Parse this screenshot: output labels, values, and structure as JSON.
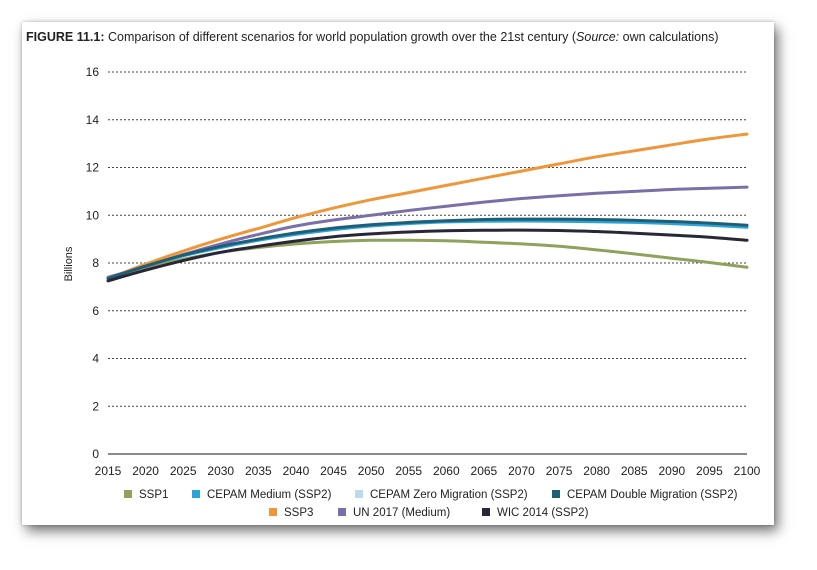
{
  "figure": {
    "label": "FIGURE 11.1:",
    "caption_main": " Comparison of different scenarios for world population growth over the 21st century (",
    "caption_source_word": "Source:",
    "caption_tail": " own calculations)"
  },
  "chart_data": {
    "type": "line",
    "title": "",
    "xlabel": "",
    "ylabel": "Billions",
    "x": [
      2015,
      2020,
      2025,
      2030,
      2035,
      2040,
      2045,
      2050,
      2055,
      2060,
      2065,
      2070,
      2075,
      2080,
      2085,
      2090,
      2095,
      2100
    ],
    "ylim": [
      0,
      16
    ],
    "yticks": [
      0,
      2,
      4,
      6,
      8,
      10,
      12,
      14,
      16
    ],
    "grid": true,
    "legend_position": "bottom",
    "series": [
      {
        "name": "SSP1",
        "color": "#8fa15a",
        "values": [
          7.35,
          7.78,
          8.15,
          8.45,
          8.65,
          8.8,
          8.9,
          8.95,
          8.95,
          8.93,
          8.87,
          8.8,
          8.7,
          8.55,
          8.38,
          8.2,
          8.02,
          7.82
        ]
      },
      {
        "name": "CEPAM Medium (SSP2)",
        "color": "#2ba3d6",
        "values": [
          7.35,
          7.85,
          8.3,
          8.65,
          8.95,
          9.2,
          9.4,
          9.55,
          9.65,
          9.72,
          9.75,
          9.76,
          9.75,
          9.73,
          9.7,
          9.65,
          9.58,
          9.5
        ]
      },
      {
        "name": "CEPAM Zero Migration (SSP2)",
        "color": "#bed9ec",
        "values": [
          7.35,
          7.85,
          8.3,
          8.66,
          8.96,
          9.22,
          9.42,
          9.57,
          9.67,
          9.74,
          9.78,
          9.8,
          9.8,
          9.78,
          9.75,
          9.7,
          9.63,
          9.55
        ]
      },
      {
        "name": "CEPAM Double Migration (SSP2)",
        "color": "#1e5f75",
        "values": [
          7.35,
          7.87,
          8.33,
          8.7,
          9.0,
          9.26,
          9.46,
          9.6,
          9.7,
          9.77,
          9.82,
          9.84,
          9.84,
          9.82,
          9.79,
          9.74,
          9.67,
          9.58
        ]
      },
      {
        "name": "SSP3",
        "color": "#f0963a",
        "values": [
          7.35,
          7.95,
          8.5,
          9.0,
          9.45,
          9.9,
          10.3,
          10.65,
          10.95,
          11.25,
          11.55,
          11.85,
          12.15,
          12.45,
          12.7,
          12.95,
          13.2,
          13.4
        ]
      },
      {
        "name": "UN 2017 (Medium)",
        "color": "#7a6fa8",
        "values": [
          7.4,
          7.85,
          8.35,
          8.8,
          9.2,
          9.55,
          9.8,
          10.0,
          10.2,
          10.38,
          10.55,
          10.7,
          10.82,
          10.92,
          11.0,
          11.08,
          11.13,
          11.18
        ]
      },
      {
        "name": "WIC 2014 (SSP2)",
        "color": "#2a2637",
        "values": [
          7.25,
          7.7,
          8.1,
          8.45,
          8.7,
          8.92,
          9.1,
          9.22,
          9.3,
          9.35,
          9.37,
          9.38,
          9.36,
          9.32,
          9.25,
          9.17,
          9.08,
          8.95
        ]
      }
    ]
  }
}
